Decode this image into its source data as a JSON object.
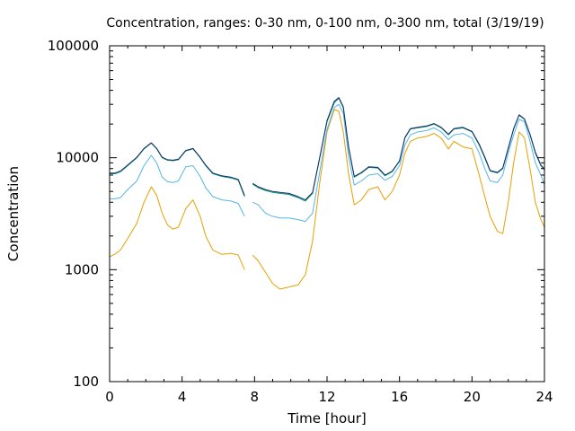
{
  "chart_data": {
    "type": "line",
    "title": "Concentration, ranges: 0-30 nm, 0-100 nm, 0-300 nm, total (3/19/19)",
    "xlabel": "Time [hour]",
    "ylabel": "Concentration",
    "xlim": [
      0,
      24
    ],
    "ylim": [
      100,
      100000
    ],
    "yscale": "log",
    "grid": false,
    "legend": "none",
    "x_ticks": [
      "0",
      "4",
      "8",
      "12",
      "16",
      "20",
      "24"
    ],
    "y_ticks": [
      "100",
      "1000",
      "10000",
      "100000"
    ],
    "series": [
      {
        "color": "#e6a000",
        "x": [
          0,
          0.3,
          0.6,
          1.0,
          1.5,
          1.9,
          2.3,
          2.6,
          2.9,
          3.2,
          3.5,
          3.8,
          4.2,
          4.6,
          5.0,
          5.3,
          5.7,
          6.2,
          6.7,
          7.1,
          7.45,
          null,
          7.9,
          8.2,
          8.6,
          9.0,
          9.4,
          9.9,
          10.4,
          10.8,
          11.2,
          11.6,
          12.0,
          12.4,
          12.65,
          12.9,
          13.2,
          13.5,
          13.9,
          14.3,
          14.8,
          15.2,
          15.6,
          16.0,
          16.3,
          16.6,
          17.0,
          17.5,
          17.9,
          18.3,
          18.7,
          19.0,
          19.5,
          20.0,
          20.4,
          20.7,
          21.0,
          21.4,
          21.7,
          22.0,
          22.3,
          22.6,
          22.9,
          23.2,
          23.5,
          23.8,
          24.0
        ],
        "y": [
          1300,
          1380,
          1500,
          1900,
          2600,
          4000,
          5500,
          4600,
          3200,
          2500,
          2300,
          2400,
          3500,
          4200,
          3000,
          2000,
          1500,
          1370,
          1400,
          1350,
          1000,
          null,
          1350,
          1200,
          950,
          750,
          670,
          700,
          730,
          900,
          1800,
          6000,
          17000,
          27000,
          26000,
          17000,
          7000,
          3800,
          4200,
          5200,
          5500,
          4200,
          5000,
          7000,
          11000,
          14000,
          15000,
          15500,
          16500,
          15000,
          12000,
          14000,
          12500,
          12000,
          7000,
          4500,
          3000,
          2200,
          2100,
          4000,
          9000,
          17000,
          15000,
          8000,
          4000,
          2800,
          2400
        ]
      },
      {
        "color": "#56b4e9",
        "x": [
          0,
          0.3,
          0.6,
          1.0,
          1.5,
          1.9,
          2.3,
          2.6,
          2.9,
          3.2,
          3.5,
          3.8,
          4.2,
          4.6,
          5.0,
          5.3,
          5.7,
          6.2,
          6.7,
          7.1,
          7.45,
          null,
          7.9,
          8.2,
          8.6,
          9.0,
          9.4,
          9.9,
          10.4,
          10.8,
          11.2,
          11.6,
          12.0,
          12.4,
          12.65,
          12.9,
          13.2,
          13.5,
          13.9,
          14.3,
          14.8,
          15.2,
          15.6,
          16.0,
          16.3,
          16.6,
          17.0,
          17.5,
          17.9,
          18.3,
          18.7,
          19.0,
          19.5,
          20.0,
          20.4,
          20.7,
          21.0,
          21.4,
          21.7,
          22.0,
          22.3,
          22.6,
          22.9,
          23.2,
          23.5,
          23.8,
          24.0
        ],
        "y": [
          4300,
          4300,
          4400,
          5200,
          6200,
          8500,
          10500,
          9000,
          6700,
          6100,
          6000,
          6200,
          8300,
          8500,
          6800,
          5400,
          4500,
          4200,
          4100,
          3900,
          3000,
          null,
          4000,
          3800,
          3200,
          3000,
          2900,
          2900,
          2800,
          2700,
          3200,
          7500,
          18000,
          28000,
          30000,
          25000,
          10000,
          5700,
          6200,
          7000,
          7200,
          6300,
          6800,
          8500,
          13000,
          16000,
          17000,
          17500,
          18500,
          17000,
          14500,
          16000,
          16500,
          15000,
          11000,
          8000,
          6200,
          6000,
          7000,
          11000,
          16000,
          22000,
          21000,
          14000,
          9000,
          7000,
          5700
        ]
      },
      {
        "color": "#009e73",
        "x": [
          0,
          0.3,
          0.6,
          1.0,
          1.5,
          1.9,
          2.3,
          2.6,
          2.9,
          3.2,
          3.5,
          3.8,
          4.2,
          4.6,
          5.0,
          5.3,
          5.7,
          6.2,
          6.7,
          7.1,
          7.45,
          null,
          7.9,
          8.2,
          8.6,
          9.0,
          9.4,
          9.9,
          10.4,
          10.8,
          11.2,
          11.6,
          12.0,
          12.4,
          12.65,
          12.9,
          13.2,
          13.5,
          13.9,
          14.3,
          14.8,
          15.2,
          15.6,
          16.0,
          16.3,
          16.6,
          17.0,
          17.5,
          17.9,
          18.3,
          18.7,
          19.0,
          19.5,
          20.0,
          20.4,
          20.7,
          21.0,
          21.4,
          21.7,
          22.0,
          22.3,
          22.6,
          22.9,
          23.2,
          23.5,
          23.8,
          24.0
        ],
        "y": [
          7200,
          7200,
          7500,
          8500,
          10000,
          12000,
          13500,
          12000,
          10000,
          9500,
          9400,
          9600,
          11500,
          12000,
          10000,
          8500,
          7200,
          6800,
          6600,
          6300,
          4500,
          null,
          5800,
          5400,
          5100,
          4900,
          4800,
          4700,
          4400,
          4100,
          4800,
          10000,
          21000,
          31000,
          34000,
          28000,
          12000,
          6700,
          7300,
          8200,
          8100,
          6900,
          7500,
          9300,
          15000,
          18000,
          18500,
          19000,
          20000,
          18500,
          16000,
          18000,
          18500,
          17000,
          13000,
          10000,
          7600,
          7300,
          8000,
          12000,
          18000,
          24000,
          22000,
          16000,
          11000,
          8500,
          7800
        ]
      },
      {
        "color": "#1a2a6c",
        "x": [
          0,
          0.3,
          0.6,
          1.0,
          1.5,
          1.9,
          2.3,
          2.6,
          2.9,
          3.2,
          3.5,
          3.8,
          4.2,
          4.6,
          5.0,
          5.3,
          5.7,
          6.2,
          6.7,
          7.1,
          7.45,
          null,
          7.9,
          8.2,
          8.6,
          9.0,
          9.4,
          9.9,
          10.4,
          10.8,
          11.2,
          11.6,
          12.0,
          12.4,
          12.65,
          12.9,
          13.2,
          13.5,
          13.9,
          14.3,
          14.8,
          15.2,
          15.6,
          16.0,
          16.3,
          16.6,
          17.0,
          17.5,
          17.9,
          18.3,
          18.7,
          19.0,
          19.5,
          20.0,
          20.4,
          20.7,
          21.0,
          21.4,
          21.7,
          22.0,
          22.3,
          22.6,
          22.9,
          23.2,
          23.5,
          23.8,
          24.0
        ],
        "y": [
          7300,
          7300,
          7600,
          8600,
          10100,
          12100,
          13600,
          12100,
          10100,
          9600,
          9500,
          9700,
          11600,
          12100,
          10100,
          8600,
          7300,
          6900,
          6700,
          6400,
          4600,
          null,
          5900,
          5500,
          5200,
          5000,
          4900,
          4800,
          4500,
          4200,
          4900,
          10100,
          21500,
          32000,
          34500,
          28500,
          12200,
          6800,
          7400,
          8300,
          8200,
          7000,
          7600,
          9400,
          15200,
          18200,
          18700,
          19200,
          20200,
          18700,
          16200,
          18200,
          18700,
          17200,
          13200,
          10200,
          7700,
          7400,
          8100,
          12200,
          18200,
          24200,
          22200,
          16200,
          11200,
          8600,
          7900
        ]
      }
    ]
  }
}
